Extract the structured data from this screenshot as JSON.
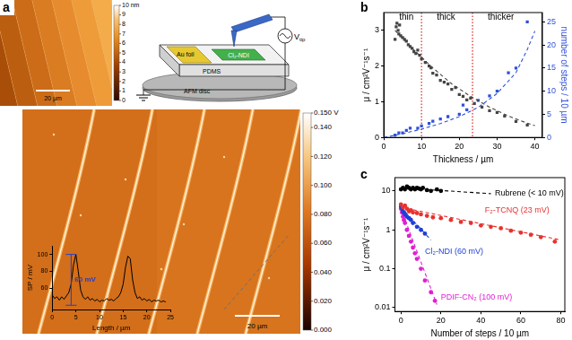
{
  "panel_a": {
    "label": "a",
    "topography": {
      "colorbar": {
        "range": [
          0,
          10
        ],
        "ticks": [
          {
            "value": 10,
            "label": "10 nm"
          },
          9,
          8,
          7,
          6,
          5,
          4,
          3,
          2,
          1,
          0
        ]
      },
      "scale_bar": "20 µm"
    },
    "schematic": {
      "labels": {
        "foil": "Au foil",
        "semiconductor": "Cl₂-NDI",
        "substrate": "PDMS",
        "disc": "AFM disc",
        "voltage": "V",
        "voltage_sub": "tip"
      }
    },
    "potential_map": {
      "colorbar": {
        "range": [
          0,
          0.15
        ],
        "ticks": [
          {
            "value": 0.15,
            "label": "0.150 V"
          },
          {
            "value": 0.14,
            "label": "0.140"
          },
          {
            "value": 0.12,
            "label": "0.120"
          },
          {
            "value": 0.1,
            "label": "0.100"
          },
          {
            "value": 0.08,
            "label": "0.080"
          },
          {
            "value": 0.06,
            "label": "0.060"
          },
          {
            "value": 0.04,
            "label": "0.040"
          },
          {
            "value": 0.02,
            "label": "0.020"
          },
          {
            "value": 0,
            "label": "0.000"
          }
        ]
      },
      "scale_bar": "20 µm"
    }
  },
  "chart_data": [
    {
      "type": "line",
      "x_label": "Length / µm",
      "y_label": "SP / mV",
      "xlim": [
        0,
        25
      ],
      "xticks": [
        0,
        5,
        10,
        15,
        20,
        25
      ],
      "ylim": [
        35,
        110
      ],
      "yticks": [
        60,
        80,
        100
      ],
      "grid": false,
      "series": [
        {
          "color": "#000000",
          "marker": "none",
          "line_style": "solid",
          "x": [
            0,
            0.5,
            1,
            1.5,
            2,
            2.5,
            3,
            3.5,
            4,
            4.5,
            5,
            5.5,
            6,
            6.5,
            7,
            7.5,
            8,
            8.5,
            9,
            9.5,
            10,
            10.5,
            11,
            11.5,
            12,
            12.5,
            13,
            13.5,
            14,
            14.5,
            15,
            15.5,
            16,
            16.5,
            17,
            17.5,
            18,
            18.5,
            19,
            19.5,
            20,
            20.5,
            21,
            21.5,
            22,
            22.5,
            23,
            23.5,
            24
          ],
          "values": [
            52,
            48,
            50,
            46,
            50,
            47,
            51,
            55,
            65,
            88,
            100,
            80,
            58,
            50,
            47,
            50,
            46,
            48,
            45,
            47,
            44,
            46,
            45,
            48,
            46,
            47,
            45,
            48,
            50,
            55,
            65,
            85,
            98,
            95,
            70,
            55,
            48,
            50,
            46,
            48,
            45,
            47,
            44,
            46,
            45,
            46,
            44,
            45,
            44
          ]
        }
      ],
      "annotations": [
        {
          "text": "60 mV",
          "x": 4,
          "ymin": 40,
          "ymax": 100,
          "color": "#2040d0"
        }
      ]
    },
    {
      "type": "scatter",
      "panel_label": "b",
      "x_label": "Thickness / µm",
      "y_label": "μ / cm²V⁻¹s⁻¹",
      "y2_label": "number of steps / 10 µm",
      "xlim": [
        0,
        42
      ],
      "xticks": [
        0,
        10,
        20,
        30,
        40
      ],
      "ylim": [
        0,
        3.5
      ],
      "yticks": [
        0,
        1,
        2,
        3
      ],
      "y2lim": [
        0,
        27
      ],
      "y2ticks": [
        0,
        5,
        10,
        15,
        20,
        25
      ],
      "grid": false,
      "series": [
        {
          "color": "#444444",
          "marker": "square",
          "x": [
            3.0,
            3.3,
            3.5,
            3.8,
            4.0,
            4.2,
            4.5,
            5.0,
            5.5,
            6.0,
            6.5,
            7.0,
            7.5,
            8.0,
            8.5,
            9.0,
            9.5,
            10.0,
            11.0,
            12.0,
            12.5,
            13.0,
            14.0,
            15.0,
            16.0,
            17.0,
            18.0,
            19.0,
            20.0,
            21.0,
            22.0,
            23.0,
            24.0,
            26.0,
            28.0,
            30.0,
            32.0,
            35.0,
            38.0
          ],
          "values": [
            2.75,
            3.1,
            3.2,
            3.0,
            2.9,
            3.15,
            2.85,
            2.8,
            2.75,
            2.7,
            2.6,
            2.55,
            2.5,
            2.4,
            2.35,
            2.45,
            2.3,
            2.2,
            2.1,
            2.0,
            1.95,
            1.8,
            1.75,
            1.6,
            1.55,
            1.5,
            1.35,
            1.4,
            1.2,
            1.15,
            1.05,
            1.1,
            0.95,
            0.85,
            0.75,
            0.7,
            0.6,
            0.45,
            0.35
          ],
          "fit": {
            "line_style": "dashed",
            "x": [
              3,
              8,
              13,
              18,
              23,
              28,
              33,
              38,
              40
            ],
            "values": [
              3.0,
              2.45,
              1.95,
              1.5,
              1.15,
              0.85,
              0.6,
              0.4,
              0.33
            ]
          }
        },
        {
          "color": "#3050d8",
          "marker": "square",
          "axis": "y2",
          "x": [
            3,
            4,
            5,
            6,
            7,
            9,
            10,
            12,
            13,
            15,
            17,
            20,
            21,
            22,
            25,
            28,
            30,
            33,
            35,
            38
          ],
          "values": [
            0.5,
            1,
            1,
            1.5,
            2,
            2,
            2.5,
            3,
            3.5,
            4,
            4.5,
            5,
            7,
            6,
            8,
            9,
            10,
            14,
            15,
            25
          ],
          "fit": {
            "line_style": "dashed",
            "x": [
              0,
              5,
              10,
              15,
              20,
              25,
              30,
              35,
              38,
              40
            ],
            "values": [
              0,
              0.8,
              1.8,
              3.0,
              4.5,
              6.5,
              9.5,
              14,
              19,
              23
            ]
          }
        }
      ],
      "reference_lines": {
        "x": [
          10,
          23.5
        ],
        "color": "#e02020",
        "line_style": "dotted"
      },
      "annotations": [
        {
          "text": "thin",
          "x": 6,
          "y": 3.38
        },
        {
          "text": "thick",
          "x": 16.5,
          "y": 3.38
        },
        {
          "text": "thicker",
          "x": 31,
          "y": 3.38
        }
      ]
    },
    {
      "type": "scatter",
      "panel_label": "c",
      "log": "y",
      "x_label": "Number of steps / 10 µm",
      "y_label": "μ / cm²V⁻¹s⁻¹",
      "xlim": [
        -3,
        82
      ],
      "xticks": [
        0,
        20,
        40,
        60,
        80
      ],
      "ylim": [
        0.008,
        22
      ],
      "yticks": [
        0.01,
        0.1,
        1,
        10
      ],
      "grid": false,
      "series": [
        {
          "name": "Rubrene (< 10 mV)",
          "color": "#000000",
          "marker": "circle",
          "x": [
            0,
            1,
            2,
            3,
            4,
            5,
            6,
            7,
            8,
            9,
            10,
            11,
            13,
            15,
            18,
            20
          ],
          "values": [
            11,
            12,
            11,
            13,
            12,
            11,
            12,
            11,
            12,
            11.5,
            11,
            12,
            10.5,
            10,
            11,
            10
          ],
          "fit": {
            "line_style": "dashed",
            "x": [
              0,
              45
            ],
            "values": [
              12,
              8.5
            ]
          },
          "label_at": {
            "x": 47,
            "y": 8.5
          }
        },
        {
          "name": "F₂-TCNQ (23 mV)",
          "color": "#e8322f",
          "marker": "circle",
          "x": [
            0,
            1,
            2,
            3,
            4,
            5,
            6,
            8,
            10,
            13,
            16,
            20,
            25,
            30,
            35,
            40,
            45,
            50,
            55,
            60,
            65,
            70,
            77
          ],
          "values": [
            4.5,
            3.8,
            4.2,
            3.5,
            3.0,
            3.2,
            2.8,
            2.7,
            2.5,
            2.3,
            2.1,
            2.0,
            1.8,
            1.6,
            1.5,
            1.3,
            1.2,
            1.1,
            0.95,
            0.85,
            0.75,
            0.65,
            0.5
          ],
          "fit": {
            "line_style": "dashed",
            "x": [
              0,
              80
            ],
            "values": [
              3.8,
              0.55
            ]
          },
          "label_at": {
            "x": 42,
            "y": 3.2
          }
        },
        {
          "name": "Cl₂-NDI (60 mV)",
          "color": "#1f3fd6",
          "marker": "circle",
          "x": [
            0,
            0.5,
            1,
            1.5,
            2,
            3,
            4,
            5,
            6,
            8,
            10,
            12
          ],
          "values": [
            4,
            3.5,
            3.0,
            2.8,
            2.5,
            2.2,
            2.0,
            1.8,
            1.5,
            1.2,
            1.0,
            0.8
          ],
          "fit": {
            "line_style": "dashed",
            "x": [
              0,
              15
            ],
            "values": [
              3.8,
              0.55
            ]
          },
          "label_at": {
            "x": 12,
            "y": 0.28
          }
        },
        {
          "name": "PDIF-CN₂ (100 mV)",
          "color": "#e020d0",
          "marker": "circle",
          "x": [
            0,
            0.5,
            1,
            1.5,
            2,
            3,
            4,
            5,
            6,
            7,
            8,
            10,
            12,
            15,
            17
          ],
          "values": [
            3.5,
            2.8,
            2.2,
            1.8,
            1.5,
            1.0,
            0.7,
            0.5,
            0.35,
            0.25,
            0.18,
            0.1,
            0.05,
            0.025,
            0.015
          ],
          "fit": {
            "line_style": "dashed",
            "x": [
              0,
              18
            ],
            "values": [
              3.5,
              0.012
            ]
          },
          "label_at": {
            "x": 20,
            "y": 0.018
          }
        }
      ]
    }
  ]
}
